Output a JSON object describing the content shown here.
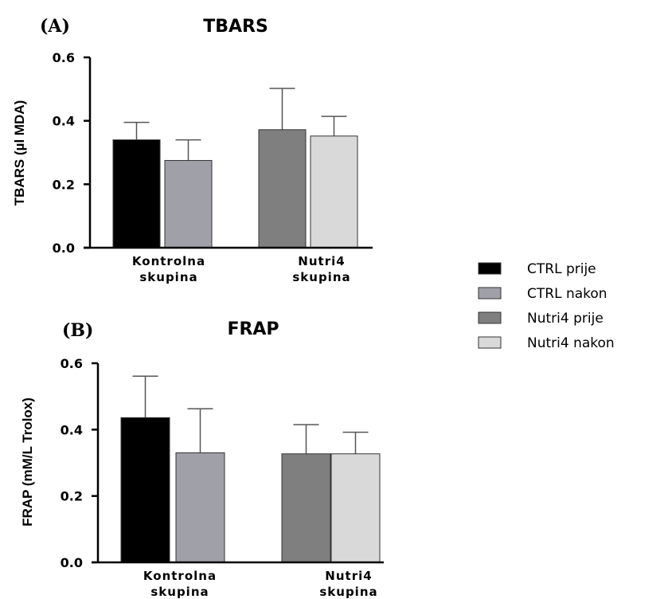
{
  "chart_data": [
    {
      "type": "bar",
      "panel_label": "(A)",
      "title": "TBARS",
      "ylabel": "TBARS (µl MDA)",
      "ylim": [
        0,
        0.6
      ],
      "yticks": [
        "0.0",
        "0.2",
        "0.4",
        "0.6"
      ],
      "categories": [
        "Kontrolna\nskupina",
        "Nutri4\nskupina"
      ],
      "series": [
        {
          "name": "CTRL prije",
          "group": 0,
          "value": 0.34,
          "error": 0.055,
          "color": "#000000"
        },
        {
          "name": "CTRL nakon",
          "group": 0,
          "value": 0.275,
          "error": 0.065,
          "color": "#a0a0a8"
        },
        {
          "name": "Nutri4 prije",
          "group": 1,
          "value": 0.372,
          "error": 0.13,
          "color": "#7f7f7f"
        },
        {
          "name": "Nutri4  nakon",
          "group": 1,
          "value": 0.352,
          "error": 0.062,
          "color": "#d9d9d9"
        }
      ]
    },
    {
      "type": "bar",
      "panel_label": "(B)",
      "title": "FRAP",
      "ylabel": "FRAP (mM/L Trolox)",
      "ylim": [
        0,
        0.6
      ],
      "yticks": [
        "0.0",
        "0.2",
        "0.4",
        "0.6"
      ],
      "categories": [
        "Kontrolna\nskupina",
        "Nutri4\nskupina"
      ],
      "series": [
        {
          "name": "CTRL prije",
          "group": 0,
          "value": 0.436,
          "error": 0.125,
          "color": "#000000"
        },
        {
          "name": "CTRL nakon",
          "group": 0,
          "value": 0.33,
          "error": 0.133,
          "color": "#a0a0a8"
        },
        {
          "name": "Nutri4 prije",
          "group": 1,
          "value": 0.327,
          "error": 0.088,
          "color": "#7f7f7f"
        },
        {
          "name": "Nutri4  nakon",
          "group": 1,
          "value": 0.327,
          "error": 0.065,
          "color": "#d9d9d9"
        }
      ]
    }
  ],
  "legend": {
    "placement": "right",
    "items": [
      {
        "label": "CTRL prije",
        "color": "#000000"
      },
      {
        "label": "CTRL nakon",
        "color": "#a0a0a8"
      },
      {
        "label": "Nutri4 prije",
        "color": "#7f7f7f"
      },
      {
        "label": "Nutri4  nakon",
        "color": "#d9d9d9"
      }
    ]
  }
}
